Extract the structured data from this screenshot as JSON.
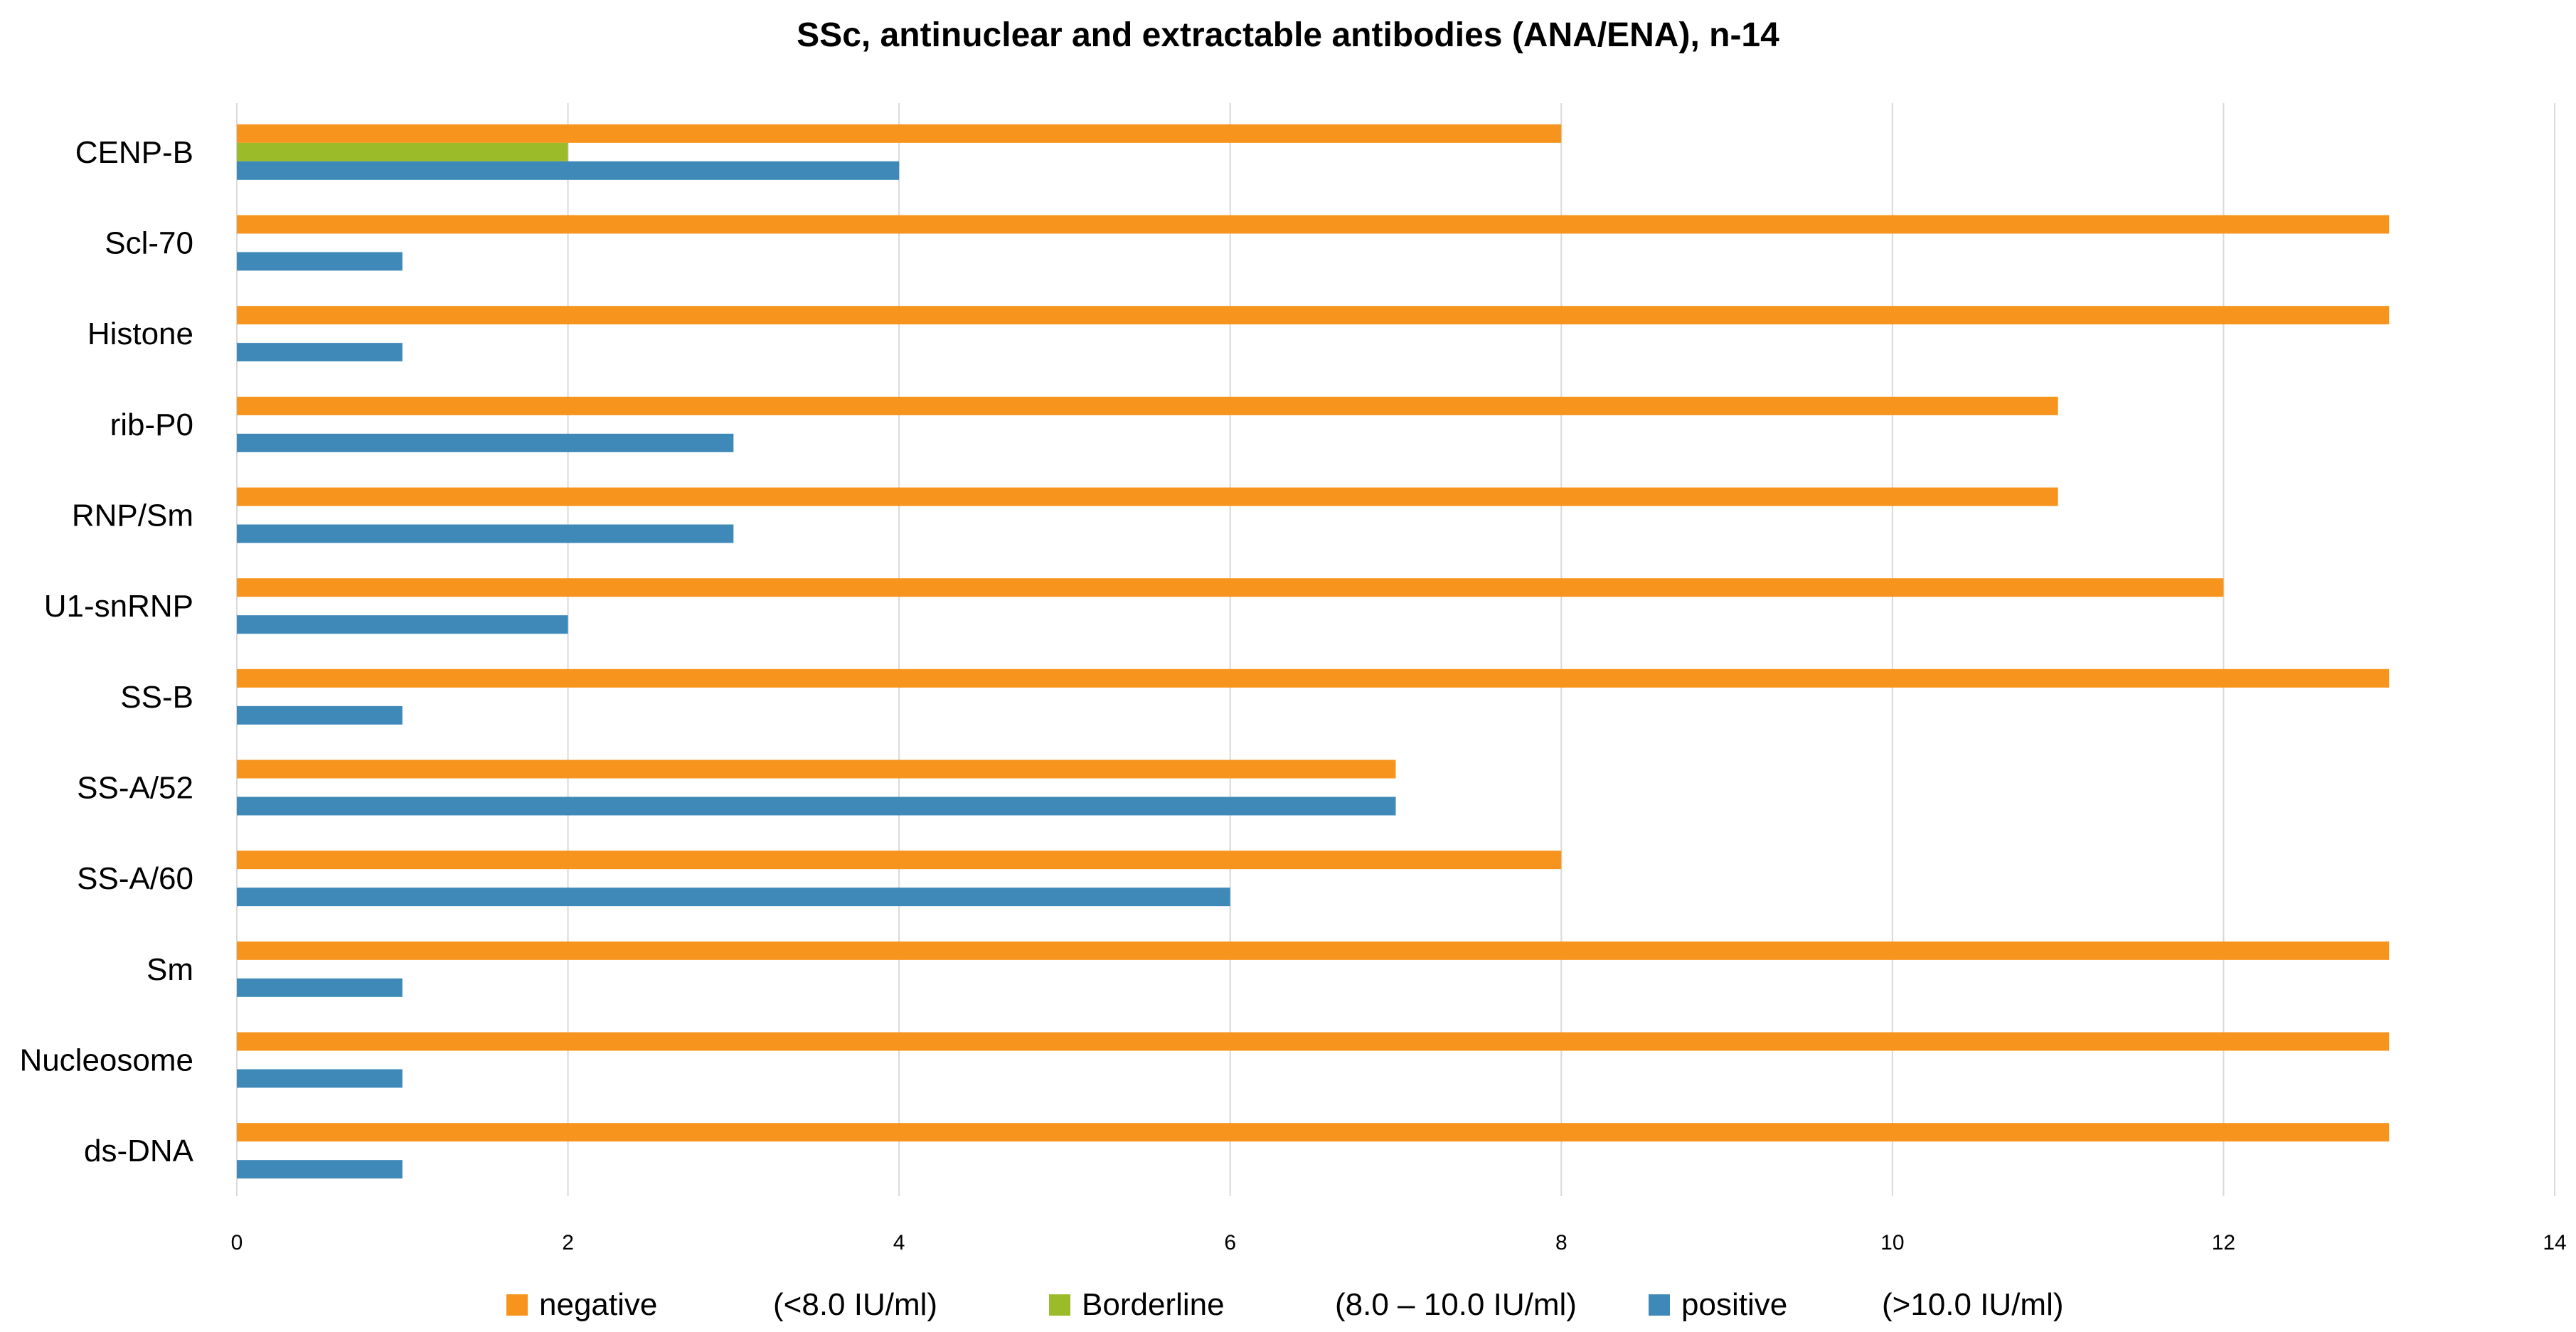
{
  "chart_data": {
    "type": "bar",
    "orientation": "horizontal",
    "title": "SSc, antinuclear and extractable antibodies (ANA/ENA), n-14",
    "xlabel": "",
    "ylabel": "",
    "xlim": [
      0,
      14
    ],
    "x_ticks": [
      0,
      2,
      4,
      6,
      8,
      10,
      12,
      14
    ],
    "grid": true,
    "legend_position": "bottom",
    "categories": [
      "CENP-B",
      "Scl-70",
      "Histone",
      "rib-P0",
      "RNP/Sm",
      "U1-snRNP",
      "SS-B",
      "SS-A/52",
      "SS-A/60",
      "Sm",
      "Nucleosome",
      "ds-DNA"
    ],
    "series": [
      {
        "name": "negative",
        "range": "(<8.0 IU/ml)",
        "color": "#F7941D",
        "values": [
          8,
          13,
          13,
          11,
          11,
          12,
          13,
          7,
          8,
          13,
          13,
          13
        ]
      },
      {
        "name": "Borderline",
        "range": "(8.0 – 10.0 IU/ml)",
        "color": "#9BBB29",
        "values": [
          2,
          0,
          0,
          0,
          0,
          0,
          0,
          0,
          0,
          0,
          0,
          0
        ]
      },
      {
        "name": "positive",
        "range": "(>10.0 IU/ml)",
        "color": "#3F89B8",
        "values": [
          4,
          1,
          1,
          3,
          3,
          2,
          1,
          7,
          6,
          1,
          1,
          1
        ]
      }
    ]
  }
}
